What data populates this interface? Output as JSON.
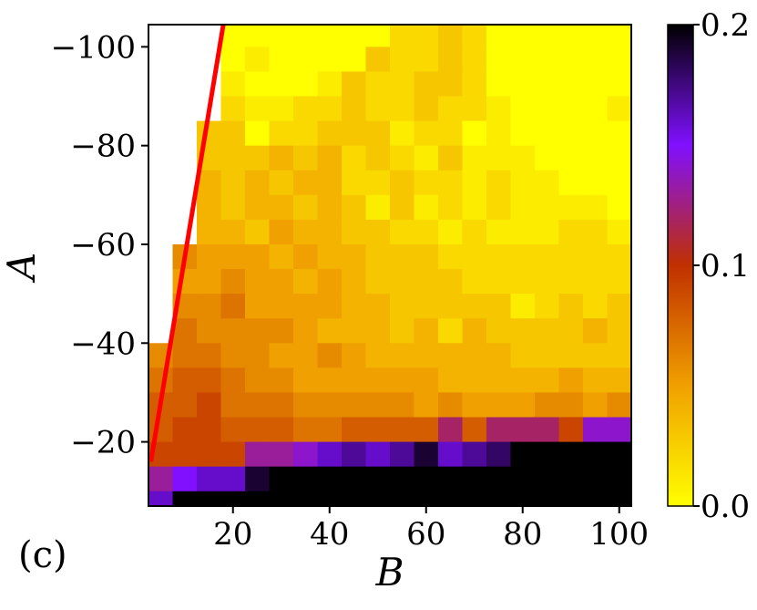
{
  "chart_data": {
    "type": "heatmap",
    "xlabel": "B",
    "ylabel": "A",
    "panel_label": "(c)",
    "x_ticks": [
      20,
      40,
      60,
      80,
      100
    ],
    "y_ticks": [
      -100,
      -80,
      -60,
      -40,
      -20
    ],
    "y_tick_labels": [
      "−100",
      "−80",
      "−60",
      "−40",
      "−20"
    ],
    "colorbar": {
      "ticks": [
        0.0,
        0.1,
        0.2
      ],
      "tick_labels": [
        "0.0",
        "0.1",
        "0.2"
      ],
      "colormap": "gnuplot-like (yellow-orange-red-purple-black)"
    },
    "x_range": [
      2.5,
      102.5
    ],
    "y_range": [
      -104.5,
      -7
    ],
    "x_bins": [
      5,
      10,
      15,
      20,
      25,
      30,
      35,
      40,
      45,
      50,
      55,
      60,
      65,
      70,
      75,
      80,
      85,
      90,
      95,
      100
    ],
    "y_rows_top_to_bottom": [
      -102.5,
      -97.5,
      -92.5,
      -87.5,
      -82.5,
      -77.5,
      -72.5,
      -67.5,
      -62.5,
      -57.5,
      -52.5,
      -47.5,
      -42.5,
      -37.5,
      -32.5,
      -27.5,
      -22.5,
      -17.5,
      -12.5,
      -7.5
    ],
    "values_top_to_bottom": [
      [
        null,
        null,
        null,
        0.0,
        0.0,
        0.0,
        0.0,
        0.0,
        0.0,
        0.0,
        0.02,
        0.02,
        0.03,
        0.02,
        0.0,
        0.0,
        0.0,
        0.0,
        0.0,
        0.0
      ],
      [
        null,
        null,
        null,
        0.0,
        0.01,
        0.0,
        0.0,
        0.0,
        0.0,
        0.03,
        0.02,
        0.02,
        0.03,
        0.02,
        0.0,
        0.0,
        0.0,
        0.0,
        0.0,
        0.0
      ],
      [
        null,
        null,
        null,
        0.01,
        0.0,
        0.0,
        0.0,
        0.01,
        0.03,
        0.02,
        0.02,
        0.03,
        0.03,
        0.02,
        0.0,
        0.0,
        0.0,
        0.0,
        0.0,
        0.0
      ],
      [
        null,
        null,
        null,
        0.02,
        0.01,
        0.01,
        0.02,
        0.02,
        0.03,
        0.02,
        0.02,
        0.03,
        0.02,
        0.02,
        0.01,
        0.0,
        0.0,
        0.0,
        0.0,
        0.01
      ],
      [
        null,
        null,
        0.03,
        0.03,
        0.0,
        0.02,
        0.02,
        0.03,
        0.03,
        0.03,
        0.01,
        0.02,
        0.02,
        0.0,
        0.01,
        0.0,
        0.0,
        0.0,
        0.0,
        0.0
      ],
      [
        null,
        null,
        0.03,
        0.03,
        0.03,
        0.04,
        0.03,
        0.04,
        0.02,
        0.03,
        0.02,
        0.01,
        0.03,
        0.01,
        0.01,
        0.01,
        0.0,
        0.0,
        0.0,
        0.0
      ],
      [
        null,
        null,
        0.04,
        0.03,
        0.04,
        0.03,
        0.04,
        0.04,
        0.02,
        0.02,
        0.03,
        0.02,
        0.02,
        0.01,
        0.02,
        0.01,
        0.01,
        0.0,
        0.0,
        0.0
      ],
      [
        null,
        null,
        0.04,
        0.03,
        0.04,
        0.04,
        0.03,
        0.04,
        0.03,
        0.01,
        0.03,
        0.01,
        0.02,
        0.01,
        0.02,
        0.01,
        0.01,
        0.01,
        0.01,
        0.0
      ],
      [
        null,
        null,
        0.04,
        0.04,
        0.03,
        0.05,
        0.04,
        0.04,
        0.03,
        0.03,
        0.02,
        0.02,
        0.01,
        0.02,
        0.01,
        0.01,
        0.01,
        0.02,
        0.02,
        0.01
      ],
      [
        null,
        0.06,
        0.05,
        0.05,
        0.05,
        0.04,
        0.05,
        0.04,
        0.04,
        0.03,
        0.03,
        0.03,
        0.02,
        0.02,
        0.02,
        0.02,
        0.02,
        0.02,
        0.02,
        0.02
      ],
      [
        null,
        0.05,
        0.05,
        0.06,
        0.05,
        0.05,
        0.04,
        0.05,
        0.04,
        0.03,
        0.03,
        0.03,
        0.03,
        0.02,
        0.02,
        0.02,
        0.02,
        0.02,
        0.02,
        0.02
      ],
      [
        null,
        0.06,
        0.06,
        0.07,
        0.05,
        0.05,
        0.05,
        0.05,
        0.04,
        0.04,
        0.03,
        0.03,
        0.03,
        0.03,
        0.03,
        0.01,
        0.02,
        0.03,
        0.02,
        0.03
      ],
      [
        null,
        0.07,
        0.06,
        0.06,
        0.06,
        0.06,
        0.05,
        0.04,
        0.04,
        0.04,
        0.03,
        0.04,
        0.02,
        0.04,
        0.03,
        0.03,
        0.03,
        0.03,
        0.04,
        0.03
      ],
      [
        0.06,
        0.07,
        0.07,
        0.06,
        0.06,
        0.05,
        0.05,
        0.06,
        0.05,
        0.04,
        0.04,
        0.04,
        0.04,
        0.04,
        0.04,
        0.03,
        0.03,
        0.03,
        0.03,
        0.03
      ],
      [
        0.07,
        0.08,
        0.08,
        0.07,
        0.06,
        0.06,
        0.05,
        0.05,
        0.05,
        0.05,
        0.05,
        0.05,
        0.04,
        0.04,
        0.04,
        0.04,
        0.04,
        0.05,
        0.04,
        0.04
      ],
      [
        0.08,
        0.08,
        0.09,
        0.07,
        0.07,
        0.07,
        0.06,
        0.06,
        0.06,
        0.06,
        0.06,
        0.05,
        0.06,
        0.05,
        0.05,
        0.05,
        0.06,
        0.06,
        0.05,
        0.06
      ],
      [
        0.08,
        0.09,
        0.09,
        0.08,
        0.08,
        0.08,
        0.07,
        0.07,
        0.08,
        0.08,
        0.08,
        0.08,
        0.12,
        0.08,
        0.12,
        0.12,
        0.12,
        0.09,
        0.14,
        0.14
      ],
      [
        0.09,
        0.09,
        0.09,
        0.09,
        0.13,
        0.13,
        0.14,
        0.16,
        0.17,
        0.16,
        0.17,
        0.19,
        0.16,
        0.17,
        0.18,
        0.2,
        0.2,
        0.2,
        0.2,
        0.2
      ],
      [
        0.13,
        0.15,
        0.16,
        0.16,
        0.19,
        0.2,
        0.2,
        0.2,
        0.2,
        0.2,
        0.2,
        0.2,
        0.2,
        0.2,
        0.2,
        0.2,
        0.2,
        0.2,
        0.2,
        0.2
      ],
      [
        0.16,
        0.2,
        0.2,
        0.2,
        0.2,
        0.2,
        0.2,
        0.2,
        0.2,
        0.2,
        0.2,
        0.2,
        0.2,
        0.2,
        0.2,
        0.2,
        0.2,
        0.2,
        0.2,
        0.2
      ]
    ],
    "bottom_region": {
      "x_range": [
        2.5,
        102.5
      ],
      "y_range": [
        -5,
        0
      ],
      "value": 0.2
    },
    "red_line": {
      "from": [
        3,
        -16
      ],
      "to": [
        18,
        -104.5
      ],
      "color": "#ff0000"
    }
  }
}
